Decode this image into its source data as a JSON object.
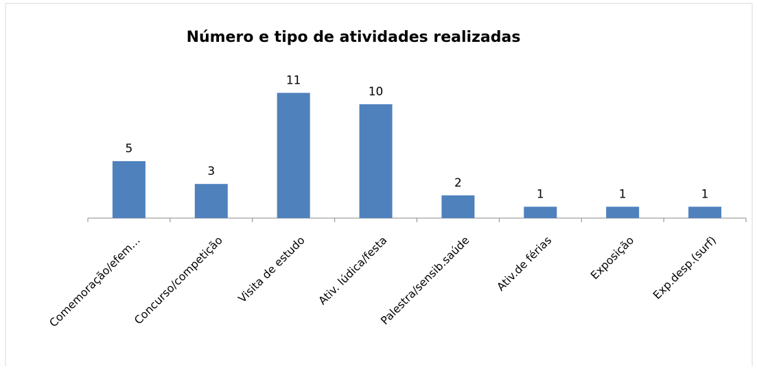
{
  "chart_data": {
    "type": "bar",
    "title": "Número e tipo de atividades realizadas",
    "categories": [
      "Comemoração/efem…",
      "Concurso/competição",
      "Visita de estudo",
      "Ativ. lúdica/festa",
      "Palestra/sensib.saúde",
      "Ativ.de férias",
      "Exposição",
      "Exp.desp.(surf)"
    ],
    "values": [
      5,
      3,
      11,
      10,
      2,
      1,
      1,
      1
    ],
    "color": "#4f81bd"
  }
}
